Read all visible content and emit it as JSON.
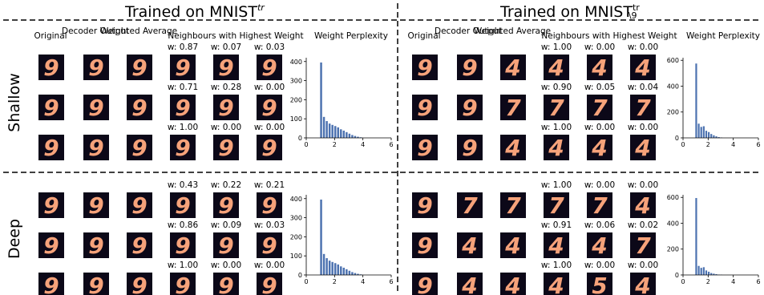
{
  "panels": [
    {
      "title": "Trained on MNIST",
      "title_sup": "tr",
      "title_sub": "",
      "headers": [
        "Original",
        "Decoder Output",
        "Weighted Average",
        "Neighbours with Highest Weight",
        "Weight Perplexity"
      ]
    },
    {
      "title": "Trained on MNIST",
      "title_sup": "tr",
      "title_sub": "\\9",
      "headers": [
        "Original",
        "Decoder Output",
        "Weighted Average",
        "Neighbours with Highest Weight",
        "Weight Perplexity"
      ]
    }
  ],
  "row_labels": [
    "Shallow",
    "Deep"
  ],
  "weights": {
    "left_shallow": [
      [
        "w: 0.87",
        "w: 0.07",
        "w: 0.03"
      ],
      [
        "w: 0.71",
        "w: 0.28",
        "w: 0.00"
      ],
      [
        "w: 1.00",
        "w: 0.00",
        "w: 0.00"
      ]
    ],
    "right_shallow": [
      [
        "w: 1.00",
        "w: 0.00",
        "w: 0.00"
      ],
      [
        "w: 0.90",
        "w: 0.05",
        "w: 0.04"
      ],
      [
        "w: 1.00",
        "w: 0.00",
        "w: 0.00"
      ]
    ],
    "left_deep": [
      [
        "w: 0.43",
        "w: 0.22",
        "w: 0.21"
      ],
      [
        "w: 0.86",
        "w: 0.09",
        "w: 0.03"
      ],
      [
        "w: 1.00",
        "w: 0.00",
        "w: 0.00"
      ]
    ],
    "right_deep": [
      [
        "w: 1.00",
        "w: 0.00",
        "w: 0.00"
      ],
      [
        "w: 0.91",
        "w: 0.06",
        "w: 0.02"
      ],
      [
        "w: 1.00",
        "w: 0.00",
        "w: 0.00"
      ]
    ]
  },
  "digits": {
    "left_shallow": [
      [
        "9",
        "9",
        "9",
        "9",
        "9",
        "9"
      ],
      [
        "9",
        "9",
        "9",
        "9",
        "9",
        "9"
      ],
      [
        "9",
        "9",
        "9",
        "9",
        "9",
        "9"
      ]
    ],
    "right_shallow": [
      [
        "9",
        "9",
        "4",
        "4",
        "4",
        "4"
      ],
      [
        "9",
        "9",
        "7",
        "7",
        "7",
        "7"
      ],
      [
        "9",
        "9",
        "4",
        "4",
        "4",
        "4"
      ]
    ],
    "left_deep": [
      [
        "9",
        "9",
        "9",
        "9",
        "9",
        "9"
      ],
      [
        "9",
        "9",
        "9",
        "9",
        "9",
        "9"
      ],
      [
        "9",
        "9",
        "9",
        "9",
        "9",
        "9"
      ]
    ],
    "right_deep": [
      [
        "9",
        "7",
        "7",
        "7",
        "7",
        "4"
      ],
      [
        "9",
        "4",
        "4",
        "4",
        "4",
        "7"
      ],
      [
        "9",
        "4",
        "4",
        "4",
        "5",
        "4"
      ]
    ]
  },
  "chart_data": [
    {
      "type": "bar",
      "id": "left_shallow",
      "xlim": [
        0,
        6
      ],
      "ylim": [
        0,
        420
      ],
      "xticks": [
        "0",
        "2",
        "4",
        "6"
      ],
      "yticks": [
        "0",
        "100",
        "200",
        "300",
        "400"
      ],
      "x": [
        1.05,
        1.25,
        1.45,
        1.65,
        1.85,
        2.05,
        2.25,
        2.45,
        2.65,
        2.85,
        3.05,
        3.25,
        3.45,
        3.65,
        3.85
      ],
      "values": [
        395,
        110,
        88,
        75,
        68,
        62,
        55,
        45,
        38,
        30,
        22,
        15,
        10,
        6,
        3
      ]
    },
    {
      "type": "bar",
      "id": "right_shallow",
      "xlim": [
        0,
        6
      ],
      "ylim": [
        0,
        620
      ],
      "xticks": [
        "0",
        "2",
        "4",
        "6"
      ],
      "yticks": [
        "0",
        "200",
        "400",
        "600"
      ],
      "x": [
        1.05,
        1.25,
        1.45,
        1.65,
        1.85,
        2.05,
        2.25,
        2.45,
        2.65,
        2.85,
        3.05
      ],
      "values": [
        575,
        110,
        85,
        90,
        55,
        45,
        30,
        20,
        12,
        6,
        3
      ]
    },
    {
      "type": "bar",
      "id": "left_deep",
      "xlim": [
        0,
        6
      ],
      "ylim": [
        0,
        420
      ],
      "xticks": [
        "0",
        "2",
        "4",
        "6"
      ],
      "yticks": [
        "0",
        "100",
        "200",
        "300",
        "400"
      ],
      "x": [
        1.05,
        1.25,
        1.45,
        1.65,
        1.85,
        2.05,
        2.25,
        2.45,
        2.65,
        2.85,
        3.05,
        3.25,
        3.45,
        3.65,
        3.85
      ],
      "values": [
        395,
        110,
        88,
        75,
        68,
        62,
        55,
        45,
        38,
        30,
        22,
        15,
        10,
        6,
        3
      ]
    },
    {
      "type": "bar",
      "id": "right_deep",
      "xlim": [
        0,
        6
      ],
      "ylim": [
        0,
        620
      ],
      "xticks": [
        "0",
        "2",
        "4",
        "6"
      ],
      "yticks": [
        "0",
        "200",
        "400",
        "600"
      ],
      "x": [
        1.05,
        1.25,
        1.45,
        1.65,
        1.85,
        2.05,
        2.25,
        2.45,
        2.65,
        2.85,
        3.05
      ],
      "values": [
        595,
        70,
        55,
        60,
        35,
        25,
        15,
        10,
        6,
        3,
        2
      ]
    }
  ],
  "colors": {
    "bar": "#4c72b0",
    "thumb_bg": "#0c0818",
    "stroke": "#f6a27a",
    "divider": "#000000"
  }
}
